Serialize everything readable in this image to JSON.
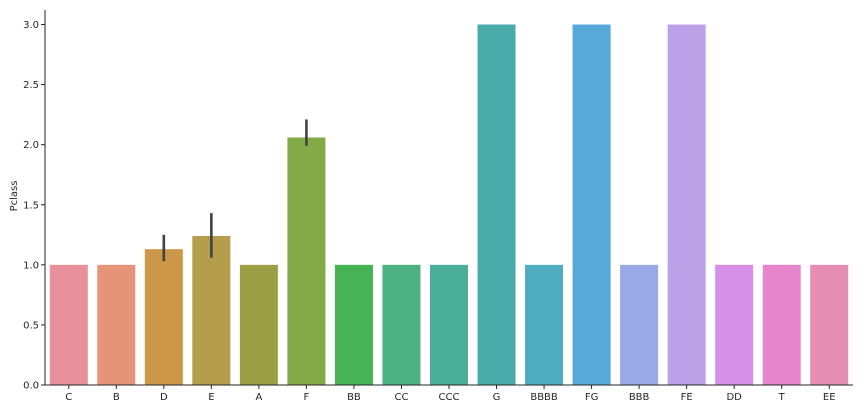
{
  "chart_data": {
    "type": "bar",
    "title": "",
    "xlabel": "",
    "ylabel": "Pclass",
    "ylim": [
      0,
      3.0
    ],
    "yticks": [
      0.0,
      0.5,
      1.0,
      1.5,
      2.0,
      2.5,
      3.0
    ],
    "ytick_labels": [
      "0.0",
      "0.5",
      "1.0",
      "1.5",
      "2.0",
      "2.5",
      "3.0"
    ],
    "grid": false,
    "legend": "none",
    "categories": [
      "C",
      "B",
      "D",
      "E",
      "A",
      "F",
      "BB",
      "CC",
      "CCC",
      "G",
      "BBBB",
      "FG",
      "BBB",
      "FE",
      "DD",
      "T",
      "EE"
    ],
    "values": [
      1.0,
      1.0,
      1.13,
      1.24,
      1.0,
      2.06,
      1.0,
      1.0,
      1.0,
      3.0,
      1.0,
      3.0,
      1.0,
      3.0,
      1.0,
      1.0,
      1.0
    ],
    "error_bars": [
      null,
      null,
      {
        "low": 1.03,
        "high": 1.25
      },
      {
        "low": 1.06,
        "high": 1.43
      },
      null,
      {
        "low": 1.99,
        "high": 2.21
      },
      null,
      null,
      null,
      null,
      null,
      null,
      null,
      null,
      null,
      null,
      null
    ],
    "colors": [
      "#e8919a",
      "#e59478",
      "#cc9748",
      "#b49e4c",
      "#9ca044",
      "#82aa46",
      "#47b354",
      "#4cb183",
      "#4bae99",
      "#4babab",
      "#50adc1",
      "#56a9d9",
      "#99a9e6",
      "#bba1e8",
      "#d88fe7",
      "#e785cc",
      "#e68db4"
    ]
  }
}
